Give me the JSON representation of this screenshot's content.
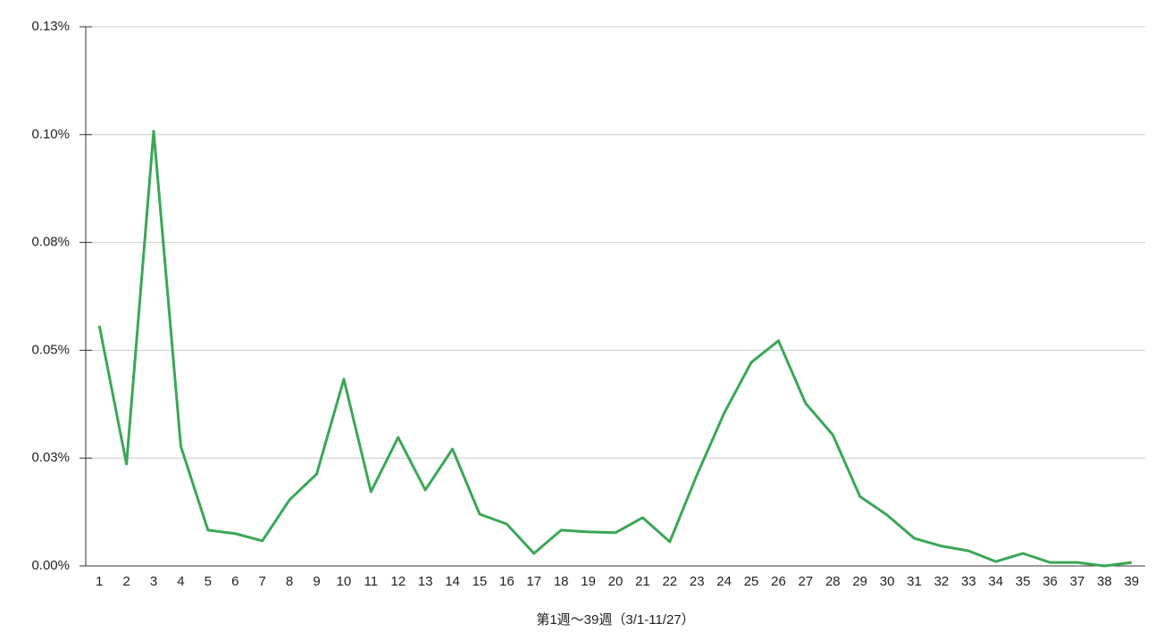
{
  "chart_data": {
    "type": "line",
    "xlabel": "第1週～39週（3/1-11/27）",
    "categories": [
      "1",
      "2",
      "3",
      "4",
      "5",
      "6",
      "7",
      "8",
      "9",
      "10",
      "11",
      "12",
      "13",
      "14",
      "15",
      "16",
      "17",
      "18",
      "19",
      "20",
      "21",
      "22",
      "23",
      "24",
      "25",
      "26",
      "27",
      "28",
      "29",
      "30",
      "31",
      "32",
      "33",
      "34",
      "35",
      "36",
      "37",
      "38",
      "39"
    ],
    "series": [
      {
        "color": "#3aa757",
        "values": [
          0.0557,
          0.0236,
          0.1008,
          0.0277,
          0.0083,
          0.0075,
          0.0058,
          0.0153,
          0.0213,
          0.0433,
          0.0172,
          0.0298,
          0.0176,
          0.0271,
          0.012,
          0.0097,
          0.0029,
          0.0083,
          0.0079,
          0.0077,
          0.0112,
          0.0056,
          0.0211,
          0.0354,
          0.0472,
          0.0522,
          0.0377,
          0.0304,
          0.0161,
          0.0118,
          0.0064,
          0.0046,
          0.0035,
          0.001,
          0.0029,
          0.0008,
          0.0008,
          0,
          0.0008
        ]
      }
    ],
    "ylim": [
      0,
      0.125
    ],
    "yticks": [
      {
        "value": 0,
        "label": "0.00%"
      },
      {
        "value": 0.025,
        "label": "0.03%"
      },
      {
        "value": 0.05,
        "label": "0.05%"
      },
      {
        "value": 0.075,
        "label": "0.08%"
      },
      {
        "value": 0.1,
        "label": "0.10%"
      },
      {
        "value": 0.125,
        "label": "0.13%"
      }
    ],
    "grid": true
  }
}
